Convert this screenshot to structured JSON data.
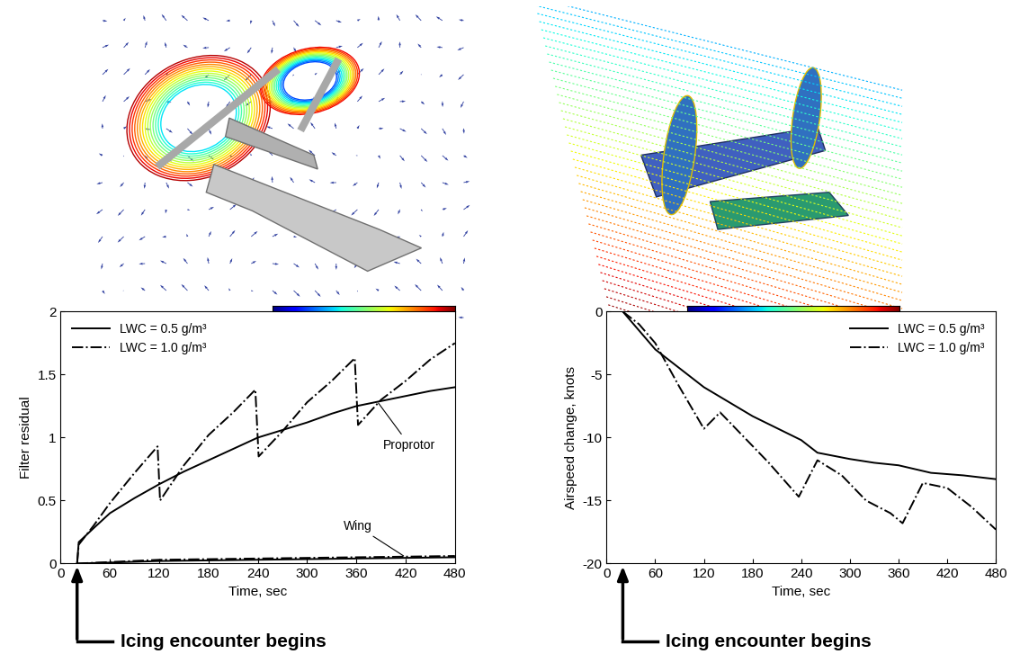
{
  "chart_data": [
    {
      "type": "line",
      "xlabel": "Time, sec",
      "ylabel": "Filter residual",
      "xlim": [
        0,
        480
      ],
      "xticks": [
        0,
        60,
        120,
        180,
        240,
        300,
        360,
        420,
        480
      ],
      "ylim": [
        0,
        2
      ],
      "yticks": [
        0,
        0.5,
        1,
        1.5,
        2
      ],
      "legend": "upper left",
      "series": [
        {
          "name": "LWC = 0.5 g/m³",
          "color": "#000000",
          "line_style": "solid",
          "x": [
            20,
            22,
            40,
            60,
            90,
            120,
            150,
            180,
            210,
            240,
            270,
            300,
            330,
            360,
            390,
            420,
            450,
            480
          ],
          "values": [
            0,
            0.17,
            0.28,
            0.4,
            0.52,
            0.63,
            0.73,
            0.82,
            0.91,
            1.0,
            1.06,
            1.12,
            1.19,
            1.25,
            1.29,
            1.33,
            1.37,
            1.4
          ]
        },
        {
          "name": "LWC = 1.0 g/m³",
          "color": "#000000",
          "line_style": "dashdot",
          "x": [
            20,
            22,
            40,
            60,
            90,
            118,
            121,
            150,
            180,
            210,
            237,
            241,
            270,
            300,
            330,
            358,
            362,
            390,
            420,
            450,
            480
          ],
          "values": [
            0,
            0.15,
            0.3,
            0.48,
            0.72,
            0.93,
            0.5,
            0.78,
            1.02,
            1.2,
            1.38,
            0.85,
            1.05,
            1.28,
            1.45,
            1.63,
            1.1,
            1.3,
            1.45,
            1.62,
            1.75
          ]
        },
        {
          "color": "#000000",
          "line_style": "solid",
          "x": [
            20,
            120,
            240,
            360,
            480
          ],
          "values": [
            0,
            0.02,
            0.03,
            0.04,
            0.05
          ]
        },
        {
          "color": "#000000",
          "line_style": "dashdot",
          "x": [
            20,
            120,
            240,
            360,
            480
          ],
          "values": [
            0,
            0.03,
            0.04,
            0.05,
            0.06
          ]
        }
      ],
      "annotations": [
        {
          "text": "Proprotor",
          "x": 385,
          "y": 1.29
        },
        {
          "text": "Wing",
          "x": 420,
          "y": 0.05
        }
      ],
      "event": {
        "text": "Icing encounter begins",
        "x": 20
      }
    },
    {
      "type": "line",
      "xlabel": "Time, sec",
      "ylabel": "Airspeed change, knots",
      "xlim": [
        0,
        480
      ],
      "xticks": [
        0,
        60,
        120,
        180,
        240,
        300,
        360,
        420,
        480
      ],
      "ylim": [
        -20,
        0
      ],
      "yticks": [
        -20,
        -15,
        -10,
        -5,
        0
      ],
      "legend": "upper right",
      "series": [
        {
          "name": "LWC = 0.5 g/m³",
          "color": "#000000",
          "line_style": "solid",
          "x": [
            20,
            60,
            120,
            180,
            240,
            260,
            300,
            330,
            360,
            400,
            440,
            480
          ],
          "values": [
            0,
            -3,
            -6,
            -8.3,
            -10.2,
            -11.2,
            -11.7,
            -12,
            -12.2,
            -12.8,
            -13,
            -13.3
          ]
        },
        {
          "name": "LWC = 1.0 g/m³",
          "color": "#000000",
          "line_style": "dashdot",
          "x": [
            20,
            40,
            60,
            90,
            120,
            140,
            170,
            200,
            237,
            260,
            290,
            320,
            350,
            365,
            390,
            420,
            450,
            480
          ],
          "values": [
            0,
            -1,
            -2.5,
            -6,
            -9.3,
            -8,
            -10,
            -12,
            -14.7,
            -11.8,
            -13,
            -15,
            -16,
            -16.8,
            -13.6,
            -14,
            -15.5,
            -17.3
          ]
        }
      ],
      "event": {
        "text": "Icing encounter begins",
        "x": 20
      }
    }
  ]
}
